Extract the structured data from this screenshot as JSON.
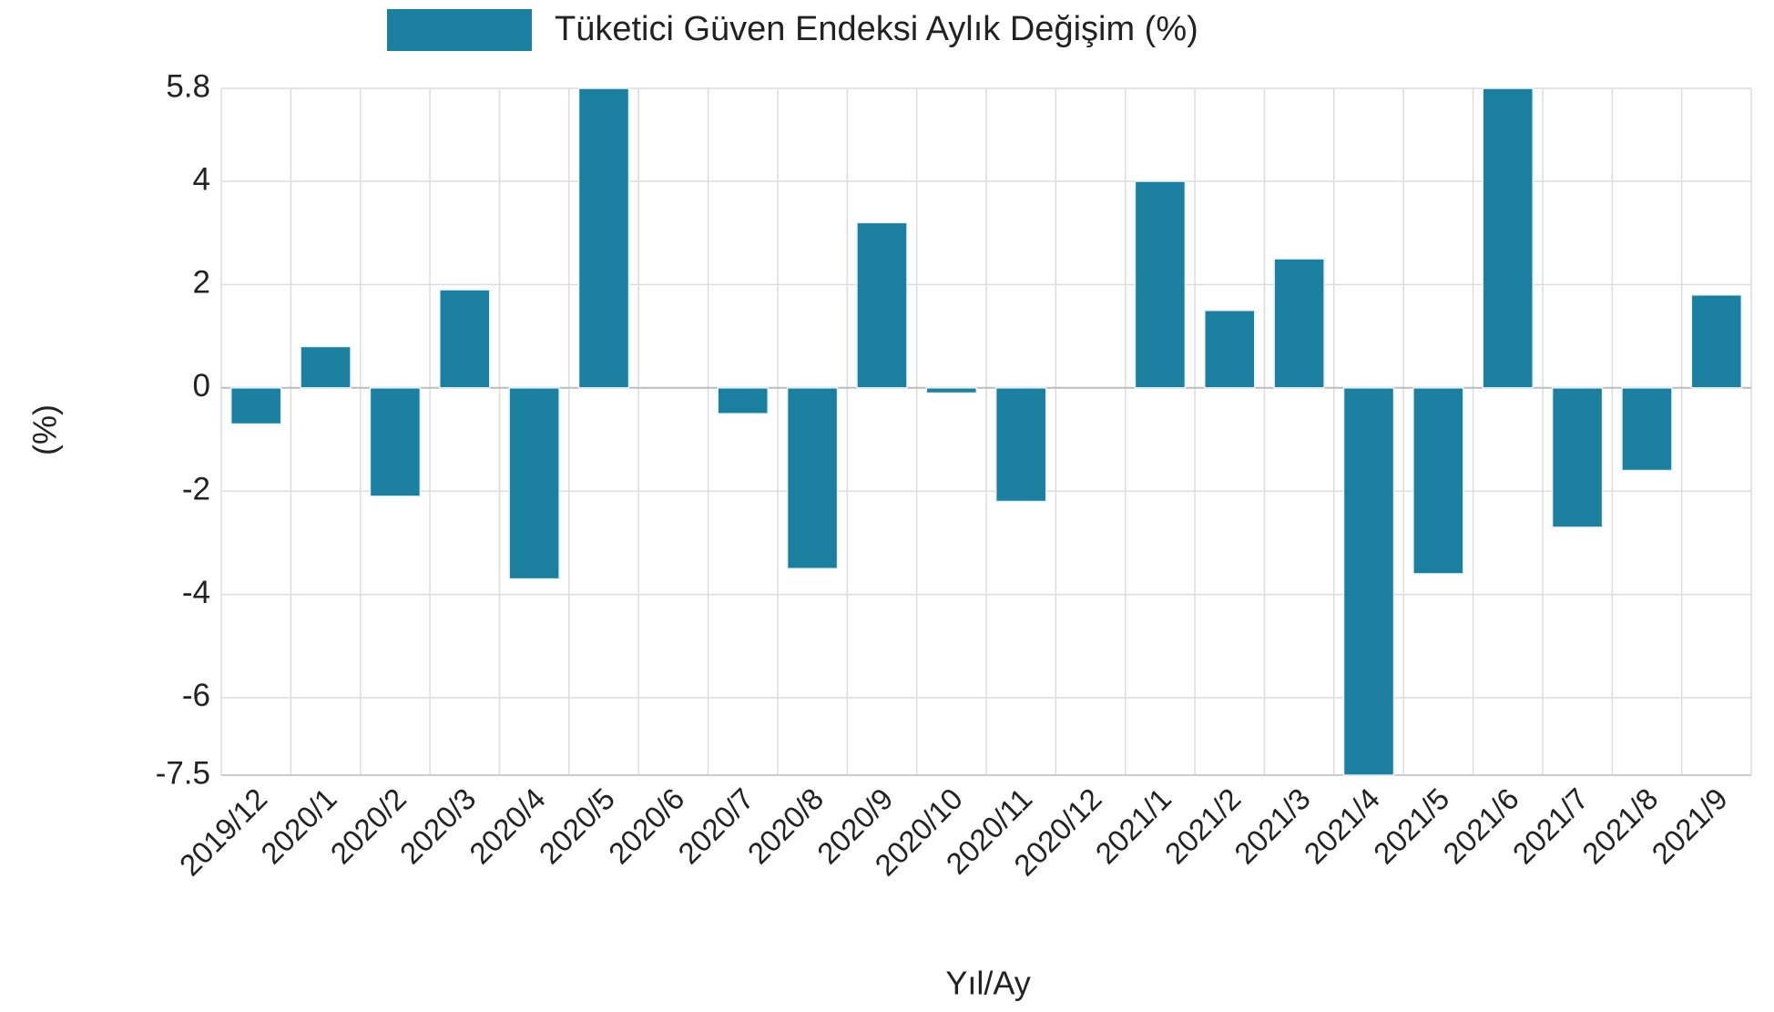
{
  "chart_data": {
    "type": "bar",
    "legend": "Tüketici Güven Endeksi Aylık Değişim (%)",
    "x_label": "Yıl/Ay",
    "y_label": "(%)",
    "color": "#1b7fa0",
    "categories": [
      "2019/12",
      "2020/1",
      "2020/2",
      "2020/3",
      "2020/4",
      "2020/5",
      "2020/6",
      "2020/7",
      "2020/8",
      "2020/9",
      "2020/10",
      "2020/11",
      "2020/12",
      "2021/1",
      "2021/2",
      "2021/3",
      "2021/4",
      "2021/5",
      "2021/6",
      "2021/7",
      "2021/8",
      "2021/9"
    ],
    "values": [
      -0.7,
      0.8,
      -2.1,
      1.9,
      -3.7,
      5.8,
      0,
      -0.5,
      -3.5,
      3.2,
      -0.1,
      -2.2,
      0,
      4.0,
      1.5,
      2.5,
      -7.5,
      -3.6,
      5.8,
      -2.7,
      -1.6,
      1.8
    ],
    "ylim": [
      -7.5,
      5.8
    ],
    "yticks": [
      -7.5,
      -6,
      -4,
      -2,
      0,
      2,
      4,
      5.8
    ],
    "grid": true
  }
}
